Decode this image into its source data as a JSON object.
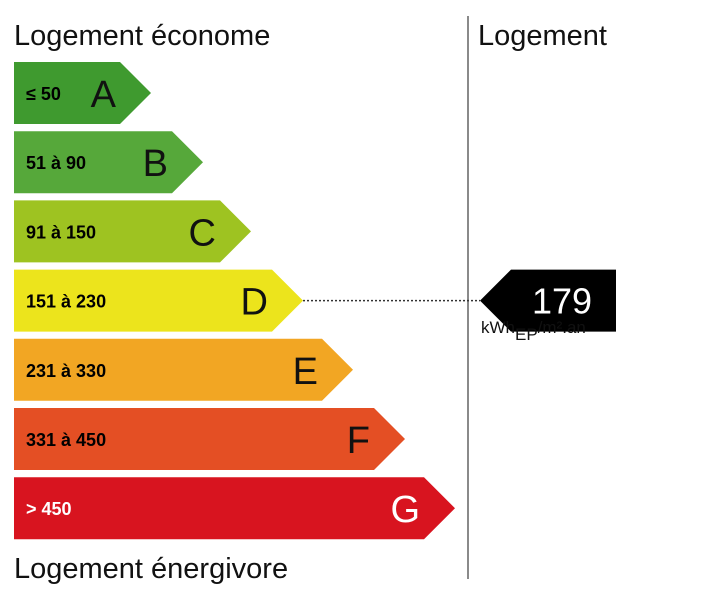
{
  "header": {
    "top_label": "Logement économe",
    "bottom_label": "Logement énergivore",
    "right_label": "Logement"
  },
  "chart_data": {
    "type": "bar",
    "categories": [
      "A",
      "B",
      "C",
      "D",
      "E",
      "F",
      "G"
    ],
    "ranges": [
      "≤ 50",
      "51 à 90",
      "91 à 150",
      "151 à 230",
      "231 à 330",
      "331 à 450",
      "> 450"
    ],
    "colors": [
      "#3f9a2f",
      "#56a83a",
      "#9ec321",
      "#ece41c",
      "#f2a623",
      "#e44f24",
      "#d8141f"
    ],
    "current": {
      "value": "179",
      "class": "D",
      "unit_main": "kWh",
      "unit_sub": "EP",
      "unit_tail": "/m².an"
    }
  }
}
